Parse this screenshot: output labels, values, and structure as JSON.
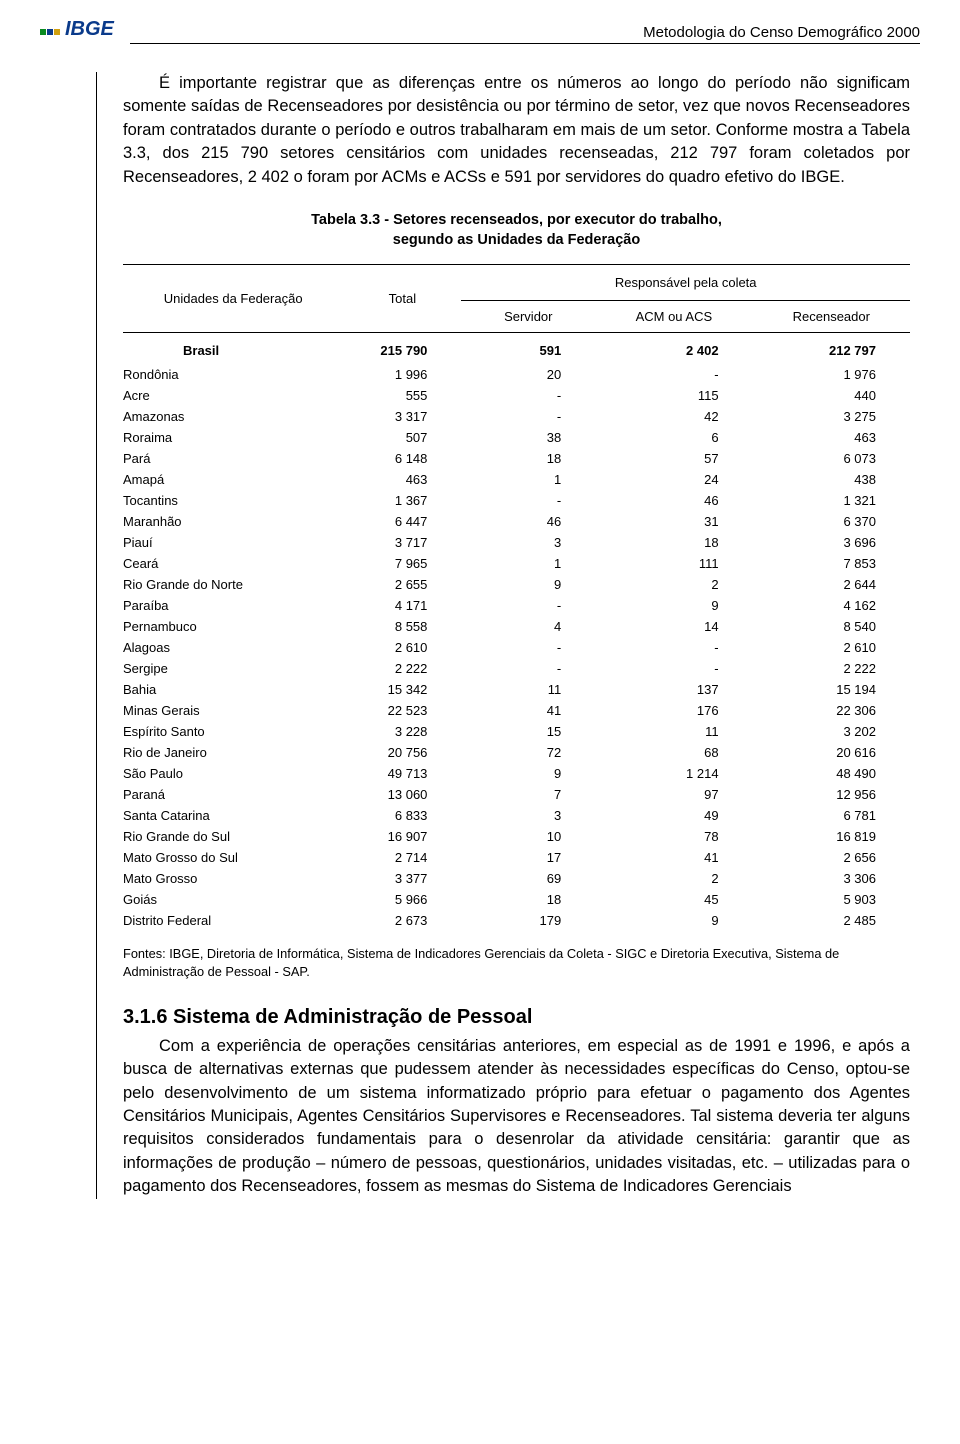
{
  "header": {
    "logo_text": "IBGE",
    "title": "Metodologia do Censo Demográfico 2000"
  },
  "intro_paragraph": "É importante registrar que as diferenças entre os números ao longo do período não significam somente saídas de Recenseadores por desistência ou por término de setor, vez que novos Recenseadores foram contratados durante o período e outros trabalharam em mais de um setor. Conforme mostra a Tabela 3.3, dos 215 790 setores censitários com unidades recenseadas, 212 797 foram coletados por Recenseadores, 2 402 o foram por ACMs e ACSs e 591 por servidores do quadro efetivo do IBGE.",
  "table": {
    "title_line1": "Tabela 3.3 - Setores recenseados, por executor do trabalho,",
    "title_line2": "segundo as Unidades da Federação",
    "col_uf": "Unidades da Federação",
    "col_total": "Total",
    "col_resp": "Responsável pela coleta",
    "col_servidor": "Servidor",
    "col_acm": "ACM ou ACS",
    "col_rec": "Recenseador",
    "rows": [
      {
        "name": "Brasil",
        "total": "215 790",
        "servidor": "591",
        "acm": "2 402",
        "rec": "212 797",
        "bold": true
      },
      {
        "name": "Rondônia",
        "total": "1 996",
        "servidor": "20",
        "acm": "-",
        "rec": "1 976"
      },
      {
        "name": "Acre",
        "total": "555",
        "servidor": "-",
        "acm": "115",
        "rec": "440"
      },
      {
        "name": "Amazonas",
        "total": "3 317",
        "servidor": "-",
        "acm": "42",
        "rec": "3 275"
      },
      {
        "name": "Roraima",
        "total": "507",
        "servidor": "38",
        "acm": "6",
        "rec": "463"
      },
      {
        "name": "Pará",
        "total": "6 148",
        "servidor": "18",
        "acm": "57",
        "rec": "6 073"
      },
      {
        "name": "Amapá",
        "total": "463",
        "servidor": "1",
        "acm": "24",
        "rec": "438"
      },
      {
        "name": "Tocantins",
        "total": "1 367",
        "servidor": "-",
        "acm": "46",
        "rec": "1 321"
      },
      {
        "name": "Maranhão",
        "total": "6 447",
        "servidor": "46",
        "acm": "31",
        "rec": "6 370"
      },
      {
        "name": "Piauí",
        "total": "3 717",
        "servidor": "3",
        "acm": "18",
        "rec": "3 696"
      },
      {
        "name": "Ceará",
        "total": "7 965",
        "servidor": "1",
        "acm": "111",
        "rec": "7 853"
      },
      {
        "name": "Rio Grande do Norte",
        "total": "2 655",
        "servidor": "9",
        "acm": "2",
        "rec": "2 644"
      },
      {
        "name": "Paraíba",
        "total": "4 171",
        "servidor": "-",
        "acm": "9",
        "rec": "4 162"
      },
      {
        "name": "Pernambuco",
        "total": "8 558",
        "servidor": "4",
        "acm": "14",
        "rec": "8 540"
      },
      {
        "name": "Alagoas",
        "total": "2 610",
        "servidor": "-",
        "acm": "-",
        "rec": "2 610"
      },
      {
        "name": "Sergipe",
        "total": "2 222",
        "servidor": "-",
        "acm": "-",
        "rec": "2 222"
      },
      {
        "name": "Bahia",
        "total": "15 342",
        "servidor": "11",
        "acm": "137",
        "rec": "15 194"
      },
      {
        "name": "Minas Gerais",
        "total": "22 523",
        "servidor": "41",
        "acm": "176",
        "rec": "22 306"
      },
      {
        "name": "Espírito Santo",
        "total": "3 228",
        "servidor": "15",
        "acm": "11",
        "rec": "3 202"
      },
      {
        "name": "Rio de Janeiro",
        "total": "20 756",
        "servidor": "72",
        "acm": "68",
        "rec": "20 616"
      },
      {
        "name": "São Paulo",
        "total": "49 713",
        "servidor": "9",
        "acm": "1 214",
        "rec": "48 490"
      },
      {
        "name": "Paraná",
        "total": "13 060",
        "servidor": "7",
        "acm": "97",
        "rec": "12 956"
      },
      {
        "name": "Santa Catarina",
        "total": "6 833",
        "servidor": "3",
        "acm": "49",
        "rec": "6 781"
      },
      {
        "name": "Rio Grande do Sul",
        "total": "16 907",
        "servidor": "10",
        "acm": "78",
        "rec": "16 819"
      },
      {
        "name": "Mato Grosso do Sul",
        "total": "2 714",
        "servidor": "17",
        "acm": "41",
        "rec": "2 656"
      },
      {
        "name": "Mato Grosso",
        "total": "3 377",
        "servidor": "69",
        "acm": "2",
        "rec": "3 306"
      },
      {
        "name": "Goiás",
        "total": "5 966",
        "servidor": "18",
        "acm": "45",
        "rec": "5 903"
      },
      {
        "name": "Distrito Federal",
        "total": "2 673",
        "servidor": "179",
        "acm": "9",
        "rec": "2 485"
      }
    ],
    "sources": "Fontes: IBGE, Diretoria de Informática, Sistema de Indicadores Gerenciais da Coleta - SIGC e Diretoria Executiva, Sistema de Administração de Pessoal - SAP."
  },
  "section": {
    "heading": "3.1.6 Sistema de Administração de Pessoal",
    "paragraph": "Com a experiência de operações censitárias anteriores, em especial as de 1991 e 1996, e após a busca de alternativas externas que pudessem atender às necessidades específicas do Censo, optou-se pelo desenvolvimento de um sistema informatizado próprio para efetuar o pagamento dos Agentes Censitários Municipais, Agentes Censitários Supervisores e Recenseadores. Tal sistema deveria ter alguns requisitos considerados fundamentais para o desenrolar da atividade censitária: garantir que as informações de produção – número de pessoas, questionários, unidades visitadas, etc. – utilizadas para o pagamento dos Recenseadores, fossem as mesmas do Sistema de Indicadores Gerenciais"
  },
  "colors": {
    "text": "#000000",
    "logo_blue": "#0a3a8a",
    "background": "#ffffff"
  }
}
